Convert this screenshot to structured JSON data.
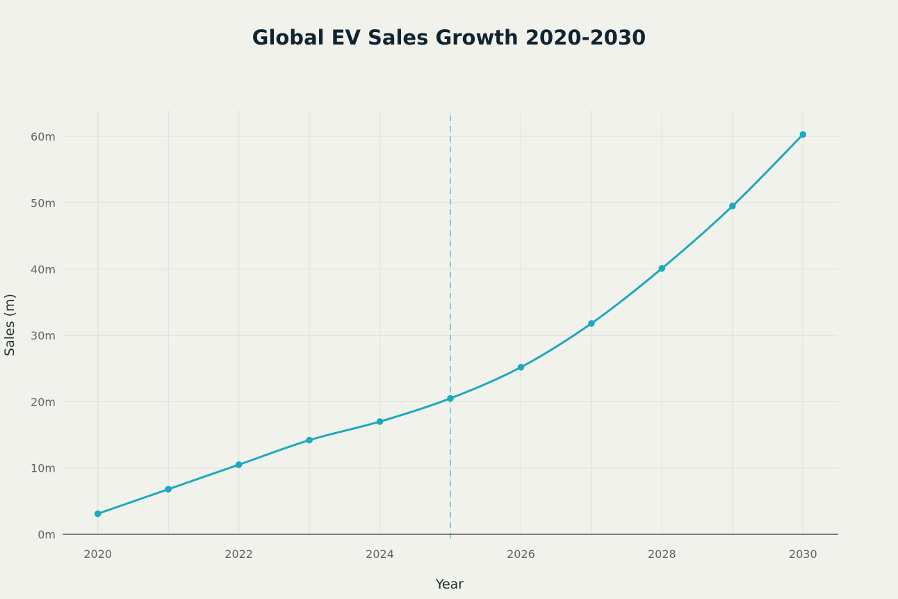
{
  "chart_data": {
    "type": "line",
    "title": "Global EV Sales Growth 2020-2030",
    "xlabel": "Year",
    "ylabel": "Sales (m)",
    "x": [
      2020,
      2021,
      2022,
      2023,
      2024,
      2025,
      2026,
      2027,
      2028,
      2029,
      2030
    ],
    "series": [
      {
        "values": [
          3.1,
          6.8,
          10.5,
          14.2,
          17.0,
          20.5,
          25.2,
          31.8,
          40.1,
          49.5,
          60.3
        ]
      }
    ],
    "xlim": [
      2019.5,
      2030.5
    ],
    "ylim": [
      0,
      64
    ],
    "x_ticks": [
      2020,
      2022,
      2024,
      2026,
      2028,
      2030
    ],
    "x_tick_labels": [
      "2020",
      "2022",
      "2024",
      "2026",
      "2028",
      "2030"
    ],
    "y_ticks": [
      0,
      10,
      20,
      30,
      40,
      50,
      60
    ],
    "y_tick_labels": [
      "0m",
      "10m",
      "20m",
      "30m",
      "40m",
      "50m",
      "60m"
    ],
    "vertical_marker_x": 2025,
    "grid": true,
    "legend": "none",
    "colors": {
      "background": "#f2f2ed",
      "line": "#20a8bc",
      "marker_line": "#7ccbdd",
      "grid": "#dfdfd9",
      "title": "#10242f",
      "text": "#5d6467"
    }
  }
}
